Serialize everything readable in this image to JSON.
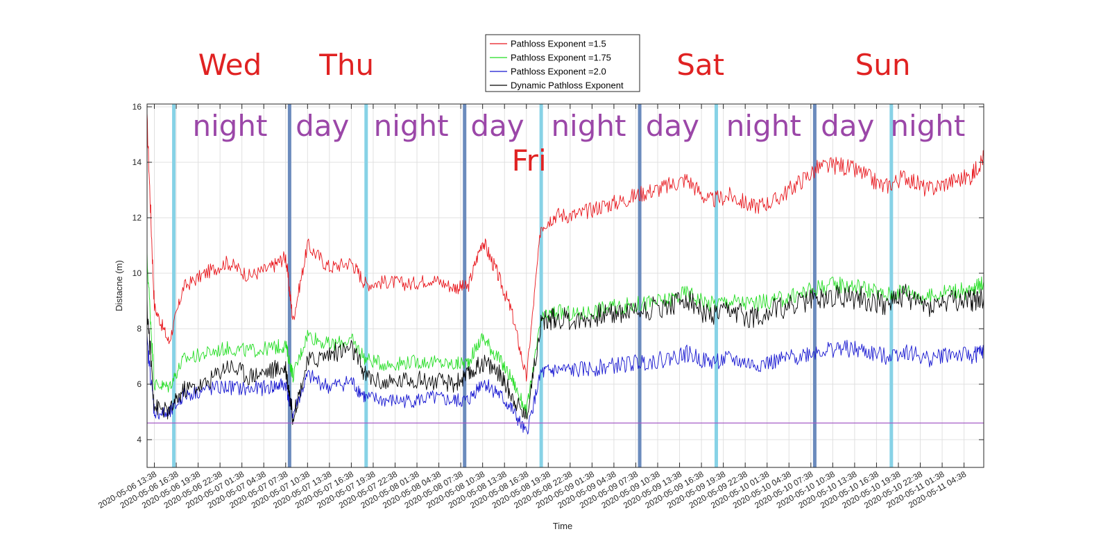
{
  "chart_data": {
    "type": "line",
    "xlabel": "Time",
    "ylabel": "Distacne (m)",
    "ylim": [
      3,
      16.1
    ],
    "yticks": [
      4,
      6,
      8,
      10,
      12,
      14,
      16
    ],
    "xlim": [
      "2020-05-06 12:38",
      "2020-05-11 07:20"
    ],
    "grid": true,
    "legend_position": "top-center",
    "x_ticks": [
      "2020-05-06 13:38",
      "2020-05-06 16:38",
      "2020-05-06 19:38",
      "2020-05-06 22:38",
      "2020-05-07 01:38",
      "2020-05-07 04:38",
      "2020-05-07 07:38",
      "2020-05-07 10:38",
      "2020-05-07 13:38",
      "2020-05-07 16:38",
      "2020-05-07 19:38",
      "2020-05-07 22:38",
      "2020-05-08 01:38",
      "2020-05-08 04:38",
      "2020-05-08 07:38",
      "2020-05-08 10:38",
      "2020-05-08 13:38",
      "2020-05-08 16:38",
      "2020-05-08 19:38",
      "2020-05-08 22:38",
      "2020-05-09 01:38",
      "2020-05-09 04:38",
      "2020-05-09 07:38",
      "2020-05-09 10:38",
      "2020-05-09 13:38",
      "2020-05-09 16:38",
      "2020-05-09 19:38",
      "2020-05-09 22:38",
      "2020-05-10 01:38",
      "2020-05-10 04:38",
      "2020-05-10 07:38",
      "2020-05-10 10:38",
      "2020-05-10 13:38",
      "2020-05-10 16:38",
      "2020-05-10 19:38",
      "2020-05-10 22:38",
      "2020-05-11 01:38",
      "2020-05-11 04:38"
    ],
    "x": [
      "2020-05-06 12:38",
      "2020-05-06 13:38",
      "2020-05-06 15:38",
      "2020-05-06 17:38",
      "2020-05-06 20:38",
      "2020-05-06 23:38",
      "2020-05-07 02:38",
      "2020-05-07 05:38",
      "2020-05-07 07:38",
      "2020-05-07 08:38",
      "2020-05-07 10:38",
      "2020-05-07 13:38",
      "2020-05-07 16:38",
      "2020-05-07 18:38",
      "2020-05-07 21:38",
      "2020-05-08 00:38",
      "2020-05-08 03:38",
      "2020-05-08 06:38",
      "2020-05-08 08:38",
      "2020-05-08 10:38",
      "2020-05-08 12:38",
      "2020-05-08 14:38",
      "2020-05-08 16:38",
      "2020-05-08 18:38",
      "2020-05-08 20:38",
      "2020-05-08 23:38",
      "2020-05-09 02:38",
      "2020-05-09 05:38",
      "2020-05-09 08:38",
      "2020-05-09 11:38",
      "2020-05-09 14:38",
      "2020-05-09 17:38",
      "2020-05-09 20:38",
      "2020-05-09 23:38",
      "2020-05-10 02:38",
      "2020-05-10 05:38",
      "2020-05-10 08:38",
      "2020-05-10 11:38",
      "2020-05-10 14:38",
      "2020-05-10 17:38",
      "2020-05-10 20:38",
      "2020-05-10 23:38",
      "2020-05-11 02:38",
      "2020-05-11 05:38",
      "2020-05-11 07:20"
    ],
    "series": [
      {
        "name": "Pathloss Exponent =1.5",
        "color": "#e8151b",
        "values": [
          15.5,
          8.8,
          7.5,
          9.5,
          10.0,
          10.4,
          9.9,
          10.2,
          10.6,
          8.3,
          11.0,
          10.2,
          10.4,
          9.6,
          9.7,
          9.6,
          9.8,
          9.5,
          9.5,
          11.2,
          10.0,
          8.6,
          6.2,
          11.7,
          12.1,
          12.1,
          12.4,
          12.6,
          12.9,
          13.1,
          13.4,
          12.6,
          12.8,
          12.4,
          12.6,
          13.2,
          13.8,
          13.9,
          13.6,
          13.1,
          13.5,
          13.0,
          13.3,
          13.5,
          14.2
        ]
      },
      {
        "name": "Pathloss Exponent =1.75",
        "color": "#22dd22",
        "values": [
          10.5,
          6.0,
          5.9,
          6.9,
          7.1,
          7.3,
          7.2,
          7.3,
          7.4,
          6.3,
          7.8,
          7.4,
          7.6,
          6.9,
          6.7,
          6.8,
          6.8,
          6.7,
          6.8,
          7.7,
          7.0,
          6.2,
          5.0,
          8.3,
          8.6,
          8.5,
          8.7,
          8.8,
          8.9,
          9.0,
          9.3,
          8.9,
          9.0,
          8.9,
          9.0,
          9.2,
          9.5,
          9.6,
          9.5,
          9.2,
          9.4,
          9.1,
          9.4,
          9.3,
          9.7
        ]
      },
      {
        "name": "Pathloss Exponent =2.0",
        "color": "#1515d0",
        "values": [
          7.5,
          5.0,
          4.9,
          5.6,
          5.8,
          5.9,
          5.8,
          5.9,
          6.0,
          4.9,
          6.3,
          5.9,
          6.1,
          5.5,
          5.4,
          5.4,
          5.5,
          5.4,
          5.4,
          6.1,
          5.7,
          5.1,
          4.2,
          6.4,
          6.5,
          6.5,
          6.6,
          6.7,
          6.8,
          6.9,
          7.1,
          6.8,
          6.9,
          6.7,
          6.8,
          7.0,
          7.2,
          7.3,
          7.2,
          7.0,
          7.2,
          6.9,
          7.1,
          7.0,
          7.2
        ]
      },
      {
        "name": "Dynamic Pathloss Exponent",
        "color": "#000000",
        "values": [
          8.8,
          5.2,
          5.0,
          5.8,
          6.0,
          6.7,
          6.3,
          6.5,
          6.6,
          4.8,
          6.8,
          7.1,
          7.3,
          6.3,
          6.0,
          6.2,
          6.1,
          6.0,
          6.3,
          6.8,
          6.5,
          5.6,
          4.8,
          8.2,
          8.4,
          8.3,
          8.5,
          8.6,
          8.7,
          8.8,
          9.1,
          8.4,
          8.6,
          8.4,
          8.7,
          8.9,
          9.1,
          9.2,
          9.1,
          8.9,
          9.2,
          8.8,
          9.0,
          9.0,
          9.1
        ]
      }
    ],
    "reference_line": {
      "y": 4.6,
      "color": "#a35bc5"
    },
    "boundaries": [
      {
        "time": "2020-05-06 16:18",
        "kind": "dusk",
        "color": "#87d2e6"
      },
      {
        "time": "2020-05-07 08:10",
        "kind": "dawn",
        "color": "#6b8bbd"
      },
      {
        "time": "2020-05-07 18:40",
        "kind": "dusk",
        "color": "#87d2e6"
      },
      {
        "time": "2020-05-08 08:10",
        "kind": "dawn",
        "color": "#6b8bbd"
      },
      {
        "time": "2020-05-08 18:40",
        "kind": "dusk",
        "color": "#87d2e6"
      },
      {
        "time": "2020-05-09 08:10",
        "kind": "dawn",
        "color": "#6b8bbd"
      },
      {
        "time": "2020-05-09 18:40",
        "kind": "dusk",
        "color": "#87d2e6"
      },
      {
        "time": "2020-05-10 08:10",
        "kind": "dawn",
        "color": "#6b8bbd"
      },
      {
        "time": "2020-05-10 18:40",
        "kind": "dusk",
        "color": "#87d2e6"
      }
    ],
    "period_annotations": [
      {
        "text": "night",
        "time": "2020-05-07 00:00"
      },
      {
        "text": "day",
        "time": "2020-05-07 12:40"
      },
      {
        "text": "night",
        "time": "2020-05-08 00:50"
      },
      {
        "text": "day",
        "time": "2020-05-08 12:40"
      },
      {
        "text": "night",
        "time": "2020-05-09 01:10"
      },
      {
        "text": "day",
        "time": "2020-05-09 12:40"
      },
      {
        "text": "night",
        "time": "2020-05-10 01:10"
      },
      {
        "text": "day",
        "time": "2020-05-10 12:40"
      },
      {
        "text": "night",
        "time": "2020-05-10 23:40"
      }
    ],
    "day_annotations": [
      {
        "text": "Wed",
        "time": "2020-05-07 00:00",
        "row": "top"
      },
      {
        "text": "Thu",
        "time": "2020-05-07 16:00",
        "row": "top"
      },
      {
        "text": "Fri",
        "time": "2020-05-08 17:00",
        "row": "inside"
      },
      {
        "text": "Sat",
        "time": "2020-05-09 16:30",
        "row": "top"
      },
      {
        "text": "Sun",
        "time": "2020-05-10 17:30",
        "row": "top"
      }
    ]
  }
}
